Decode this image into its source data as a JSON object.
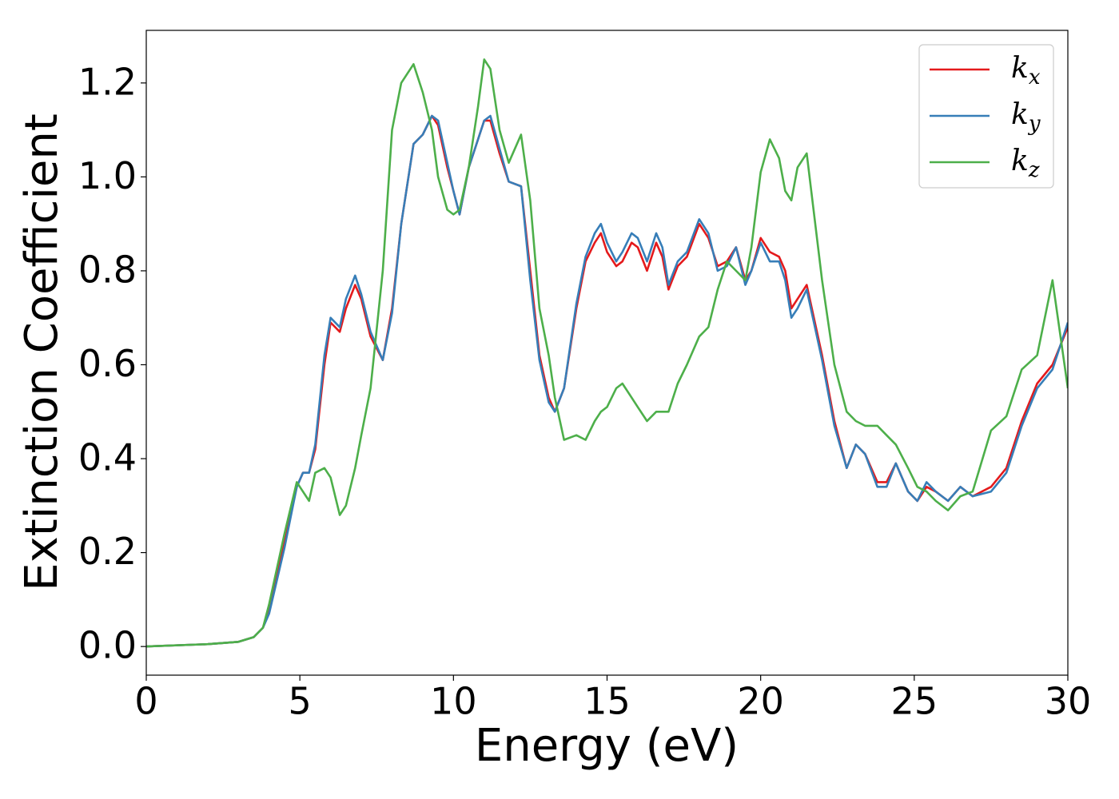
{
  "chart_data": {
    "type": "line",
    "xlabel": "Energy (eV)",
    "ylabel": "Extinction Coefficient",
    "x": [
      0,
      2,
      3,
      3.5,
      3.8,
      4,
      4.5,
      4.9,
      5.1,
      5.3,
      5.5,
      5.8,
      6.0,
      6.3,
      6.5,
      6.8,
      7.0,
      7.3,
      7.7,
      8.0,
      8.3,
      8.7,
      9.0,
      9.3,
      9.5,
      9.8,
      10.0,
      10.2,
      10.5,
      10.8,
      11.0,
      11.2,
      11.5,
      11.8,
      12.2,
      12.5,
      12.8,
      13.1,
      13.3,
      13.6,
      14.0,
      14.3,
      14.6,
      14.8,
      15.0,
      15.3,
      15.5,
      15.8,
      16.0,
      16.3,
      16.6,
      16.8,
      17.0,
      17.3,
      17.6,
      18.0,
      18.3,
      18.6,
      18.9,
      19.2,
      19.5,
      19.7,
      20.0,
      20.3,
      20.6,
      20.8,
      21.0,
      21.2,
      21.5,
      22.0,
      22.4,
      22.8,
      23.1,
      23.4,
      23.8,
      24.1,
      24.4,
      24.8,
      25.1,
      25.4,
      25.7,
      26.1,
      26.5,
      26.9,
      27.5,
      28.0,
      28.5,
      29.0,
      29.5,
      30.0
    ],
    "series": [
      {
        "name": "kx",
        "color": "#e41a1c",
        "values": [
          0,
          0.005,
          0.01,
          0.02,
          0.04,
          0.08,
          0.22,
          0.34,
          0.37,
          0.37,
          0.42,
          0.6,
          0.69,
          0.67,
          0.72,
          0.77,
          0.74,
          0.66,
          0.61,
          0.72,
          0.9,
          1.07,
          1.09,
          1.13,
          1.11,
          1.02,
          0.97,
          0.92,
          1.02,
          1.08,
          1.12,
          1.12,
          1.05,
          0.99,
          0.98,
          0.8,
          0.62,
          0.53,
          0.5,
          0.55,
          0.72,
          0.82,
          0.86,
          0.88,
          0.84,
          0.81,
          0.82,
          0.86,
          0.85,
          0.8,
          0.86,
          0.83,
          0.76,
          0.81,
          0.83,
          0.9,
          0.87,
          0.81,
          0.82,
          0.85,
          0.78,
          0.8,
          0.87,
          0.84,
          0.83,
          0.8,
          0.72,
          0.74,
          0.77,
          0.62,
          0.48,
          0.38,
          0.43,
          0.41,
          0.35,
          0.35,
          0.39,
          0.33,
          0.31,
          0.34,
          0.33,
          0.31,
          0.34,
          0.32,
          0.34,
          0.38,
          0.48,
          0.56,
          0.6,
          0.68
        ]
      },
      {
        "name": "ky",
        "color": "#377eb8",
        "values": [
          0,
          0.005,
          0.01,
          0.02,
          0.04,
          0.07,
          0.21,
          0.34,
          0.37,
          0.37,
          0.43,
          0.62,
          0.7,
          0.68,
          0.74,
          0.79,
          0.75,
          0.67,
          0.61,
          0.71,
          0.9,
          1.07,
          1.09,
          1.13,
          1.12,
          1.03,
          0.97,
          0.92,
          1.02,
          1.08,
          1.12,
          1.13,
          1.06,
          0.99,
          0.98,
          0.78,
          0.61,
          0.52,
          0.5,
          0.55,
          0.73,
          0.83,
          0.88,
          0.9,
          0.86,
          0.82,
          0.84,
          0.88,
          0.87,
          0.82,
          0.88,
          0.85,
          0.77,
          0.82,
          0.84,
          0.91,
          0.88,
          0.8,
          0.81,
          0.85,
          0.77,
          0.8,
          0.86,
          0.82,
          0.82,
          0.78,
          0.7,
          0.72,
          0.76,
          0.61,
          0.47,
          0.38,
          0.43,
          0.41,
          0.34,
          0.34,
          0.39,
          0.33,
          0.31,
          0.35,
          0.33,
          0.31,
          0.34,
          0.32,
          0.33,
          0.37,
          0.47,
          0.55,
          0.59,
          0.69
        ]
      },
      {
        "name": "kz",
        "color": "#4daf4a",
        "values": [
          0,
          0.005,
          0.01,
          0.02,
          0.04,
          0.09,
          0.24,
          0.35,
          0.33,
          0.31,
          0.37,
          0.38,
          0.36,
          0.28,
          0.3,
          0.38,
          0.45,
          0.55,
          0.8,
          1.1,
          1.2,
          1.24,
          1.18,
          1.1,
          1.0,
          0.93,
          0.92,
          0.93,
          1.02,
          1.15,
          1.25,
          1.23,
          1.1,
          1.03,
          1.09,
          0.95,
          0.72,
          0.62,
          0.53,
          0.44,
          0.45,
          0.44,
          0.48,
          0.5,
          0.51,
          0.55,
          0.56,
          0.53,
          0.51,
          0.48,
          0.5,
          0.5,
          0.5,
          0.56,
          0.6,
          0.66,
          0.68,
          0.76,
          0.82,
          0.8,
          0.78,
          0.85,
          1.01,
          1.08,
          1.04,
          0.97,
          0.95,
          1.02,
          1.05,
          0.78,
          0.6,
          0.5,
          0.48,
          0.47,
          0.47,
          0.45,
          0.43,
          0.38,
          0.34,
          0.33,
          0.31,
          0.29,
          0.32,
          0.33,
          0.46,
          0.49,
          0.59,
          0.62,
          0.78,
          0.55
        ]
      }
    ],
    "xlim": [
      0,
      30
    ],
    "xticks": [
      0,
      5,
      10,
      15,
      20,
      25,
      30
    ],
    "ylim": [
      -0.061,
      1.312
    ],
    "yticks": [
      {
        "value": 0,
        "label": "0.0"
      },
      0.2,
      0.4,
      0.6,
      0.8,
      {
        "value": 1,
        "label": "1.0"
      },
      1.2
    ],
    "grid": false,
    "legend": "upper right"
  }
}
